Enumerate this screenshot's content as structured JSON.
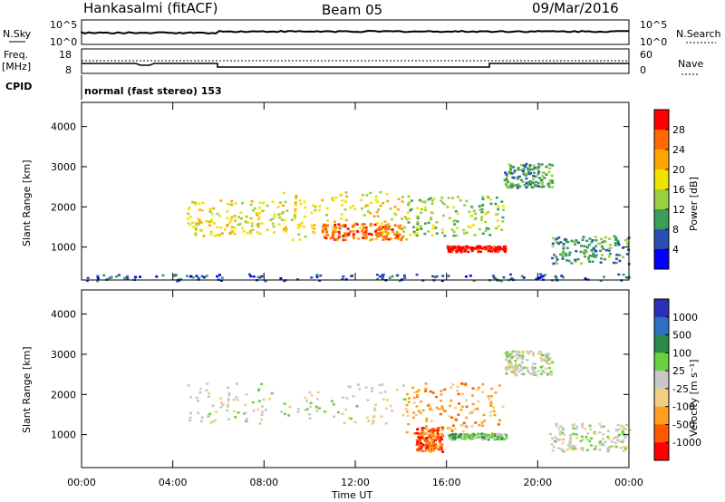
{
  "header": {
    "station": "Hankasalmi (fitACF)",
    "beam": "Beam 05",
    "date": "09/Mar/2016"
  },
  "strips": {
    "nsky_label": "N.Sky",
    "nsearch_label": "N.Search",
    "nsky_ticks": [
      "10^5",
      "10^0"
    ],
    "nsearch_ticks": [
      "10^5",
      "10^0"
    ],
    "freq_label_1": "Freq.",
    "freq_label_2": "[MHz]",
    "freq_ticks": [
      "18",
      "8"
    ],
    "nave_label": "Nave",
    "nave_ticks": [
      "60",
      "0"
    ],
    "cpid_label": "CPID",
    "cpid_text": "normal (fast stereo) 153"
  },
  "axes": {
    "xlabel": "Time UT",
    "ylabel": "Slant Range [km]",
    "xticks": [
      "00:00",
      "04:00",
      "08:00",
      "12:00",
      "16:00",
      "20:00",
      "00:00"
    ],
    "yticks": [
      "4000",
      "3000",
      "2000",
      "1000"
    ]
  },
  "power_colorbar": {
    "label": "Power [dB]",
    "ticks": [
      "28",
      "24",
      "20",
      "16",
      "12",
      "8",
      "4"
    ],
    "colors": [
      "#ff0000",
      "#ff6a00",
      "#ffa500",
      "#f2e200",
      "#9ad040",
      "#3a9e5a",
      "#2a4fb0",
      "#0000ff"
    ]
  },
  "velocity_colorbar": {
    "label": "Velocity [m s⁻¹]",
    "ticks": [
      "1000",
      "500",
      "100",
      "25",
      "-25",
      "-100",
      "-500",
      "-1000"
    ],
    "colors": [
      "#2a30b8",
      "#2f6fc0",
      "#2a8a4a",
      "#6ad040",
      "#c8c8c8",
      "#f0d080",
      "#ffa020",
      "#ff5a00",
      "#ff0000"
    ]
  },
  "chart_data": [
    {
      "type": "heatmap",
      "title": "",
      "xlabel": "Time UT",
      "ylabel": "Slant Range [km]",
      "quantity": "Power [dB]",
      "xlim": [
        0,
        24
      ],
      "ylim": [
        180,
        4600
      ],
      "regions": [
        {
          "t0": 4.6,
          "t1": 8.8,
          "r0": 1300,
          "r1": 2200,
          "level": 4
        },
        {
          "t0": 8.8,
          "t1": 14.2,
          "r0": 1200,
          "r1": 2400,
          "level": 4
        },
        {
          "t0": 14.2,
          "t1": 18.5,
          "r0": 1300,
          "r1": 2300,
          "level": 3
        },
        {
          "t0": 18.5,
          "t1": 20.6,
          "r0": 2500,
          "r1": 3100,
          "level": 2
        },
        {
          "t0": 10.5,
          "t1": 14.0,
          "r0": 1200,
          "r1": 1600,
          "level": 6
        },
        {
          "t0": 16.0,
          "t1": 18.6,
          "r0": 900,
          "r1": 1050,
          "level": 7
        },
        {
          "t0": 20.5,
          "t1": 24.0,
          "r0": 600,
          "r1": 1300,
          "level": 2
        },
        {
          "t0": 0.0,
          "t1": 24.0,
          "r0": 180,
          "r1": 350,
          "level": 1
        }
      ]
    },
    {
      "type": "heatmap",
      "title": "",
      "xlabel": "Time UT",
      "ylabel": "Slant Range [km]",
      "quantity": "Velocity [m s⁻¹]",
      "xlim": [
        0,
        24
      ],
      "ylim": [
        180,
        4600
      ],
      "regions": [
        {
          "t0": 4.6,
          "t1": 14.2,
          "r0": 1300,
          "r1": 2300,
          "level": 4
        },
        {
          "t0": 14.2,
          "t1": 18.5,
          "r0": 1000,
          "r1": 2300,
          "level": 6
        },
        {
          "t0": 16.0,
          "t1": 18.6,
          "r0": 900,
          "r1": 1050,
          "level": 3
        },
        {
          "t0": 18.5,
          "t1": 20.6,
          "r0": 2500,
          "r1": 3100,
          "level": 4
        },
        {
          "t0": 14.6,
          "t1": 15.8,
          "r0": 600,
          "r1": 1200,
          "level": 7
        },
        {
          "t0": 20.5,
          "t1": 24.0,
          "r0": 600,
          "r1": 1300,
          "level": 4
        }
      ]
    }
  ]
}
